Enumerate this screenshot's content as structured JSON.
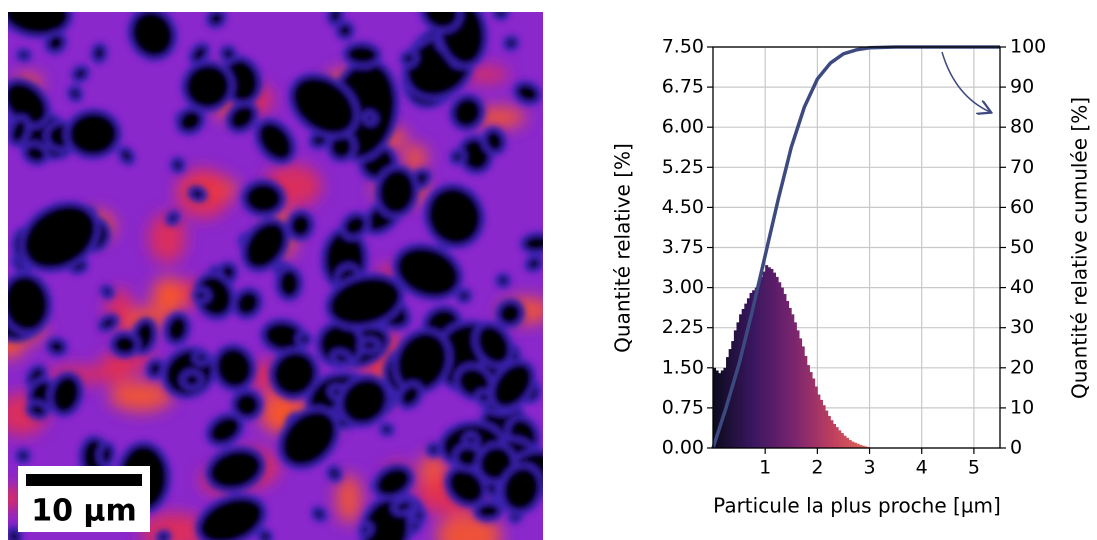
{
  "scale_bar": {
    "label": "10 µm"
  },
  "chart_data": {
    "type": "histogram",
    "xlabel": "Particule la plus proche [µm]",
    "ylabel": "Quantité relative [%]",
    "y2label": "Quantité relative cumulée [%]",
    "bins": [
      0,
      0.05,
      0.1,
      0.15,
      0.2,
      0.25,
      0.3,
      0.35,
      0.4,
      0.45,
      0.5,
      0.55,
      0.6,
      0.65,
      0.7,
      0.75,
      0.8,
      0.85,
      0.9,
      0.95,
      1,
      1.05,
      1.1,
      1.15,
      1.2,
      1.25,
      1.3,
      1.35,
      1.4,
      1.45,
      1.5,
      1.55,
      1.6,
      1.65,
      1.7,
      1.75,
      1.8,
      1.85,
      1.9,
      1.95,
      2,
      2.05,
      2.1,
      2.15,
      2.2,
      2.25,
      2.3,
      2.35,
      2.4,
      2.45,
      2.5,
      2.55,
      2.6,
      2.65,
      2.7,
      2.75,
      2.8,
      2.85,
      2.9,
      2.95,
      3,
      3.05,
      3.1
    ],
    "values": [
      1.5,
      1.45,
      1.4,
      1.45,
      1.5,
      1.7,
      1.85,
      2.0,
      2.2,
      2.35,
      2.5,
      2.6,
      2.7,
      2.8,
      2.9,
      2.95,
      3.0,
      3.1,
      3.2,
      3.3,
      3.42,
      3.38,
      3.35,
      3.28,
      3.2,
      3.1,
      3.0,
      2.88,
      2.75,
      2.62,
      2.5,
      2.35,
      2.2,
      2.05,
      1.9,
      1.72,
      1.55,
      1.42,
      1.3,
      1.15,
      1.0,
      0.9,
      0.8,
      0.7,
      0.6,
      0.52,
      0.45,
      0.39,
      0.33,
      0.28,
      0.23,
      0.19,
      0.15,
      0.12,
      0.1,
      0.08,
      0.06,
      0.045,
      0.03,
      0.02,
      0.01,
      0.005
    ],
    "colormap": [
      "#0b0b1e",
      "#3a1660",
      "#7a2470",
      "#c2415e",
      "#e8705a"
    ],
    "cumulative": {
      "x": [
        0,
        0.25,
        0.5,
        0.75,
        1,
        1.25,
        1.5,
        1.75,
        2,
        2.25,
        2.5,
        2.75,
        3,
        3.5,
        4,
        4.5,
        5,
        5.5
      ],
      "values": [
        0,
        10,
        21,
        34,
        48,
        62,
        75,
        85,
        92,
        96,
        98.3,
        99.3,
        99.8,
        100,
        100,
        100,
        100,
        100
      ],
      "color": "#3d4a80",
      "axis": "y2"
    },
    "xlim": [
      0,
      5.5
    ],
    "xticks": [
      1,
      2,
      3,
      4,
      5
    ],
    "ylim": [
      0,
      7.5
    ],
    "yticks": [
      {
        "value": 0,
        "label": "0.00"
      },
      0.75,
      {
        "value": 1.5,
        "label": "1.50"
      },
      2.25,
      {
        "value": 3,
        "label": "3.00"
      },
      3.75,
      {
        "value": 4.5,
        "label": "4.50"
      },
      5.25,
      {
        "value": 6,
        "label": "6.00"
      },
      6.75,
      {
        "value": 7.5,
        "label": "7.50"
      }
    ],
    "y2lim": [
      0,
      100
    ],
    "y2ticks": [
      0,
      10,
      20,
      30,
      40,
      50,
      60,
      70,
      80,
      90,
      100
    ],
    "grid": true
  }
}
